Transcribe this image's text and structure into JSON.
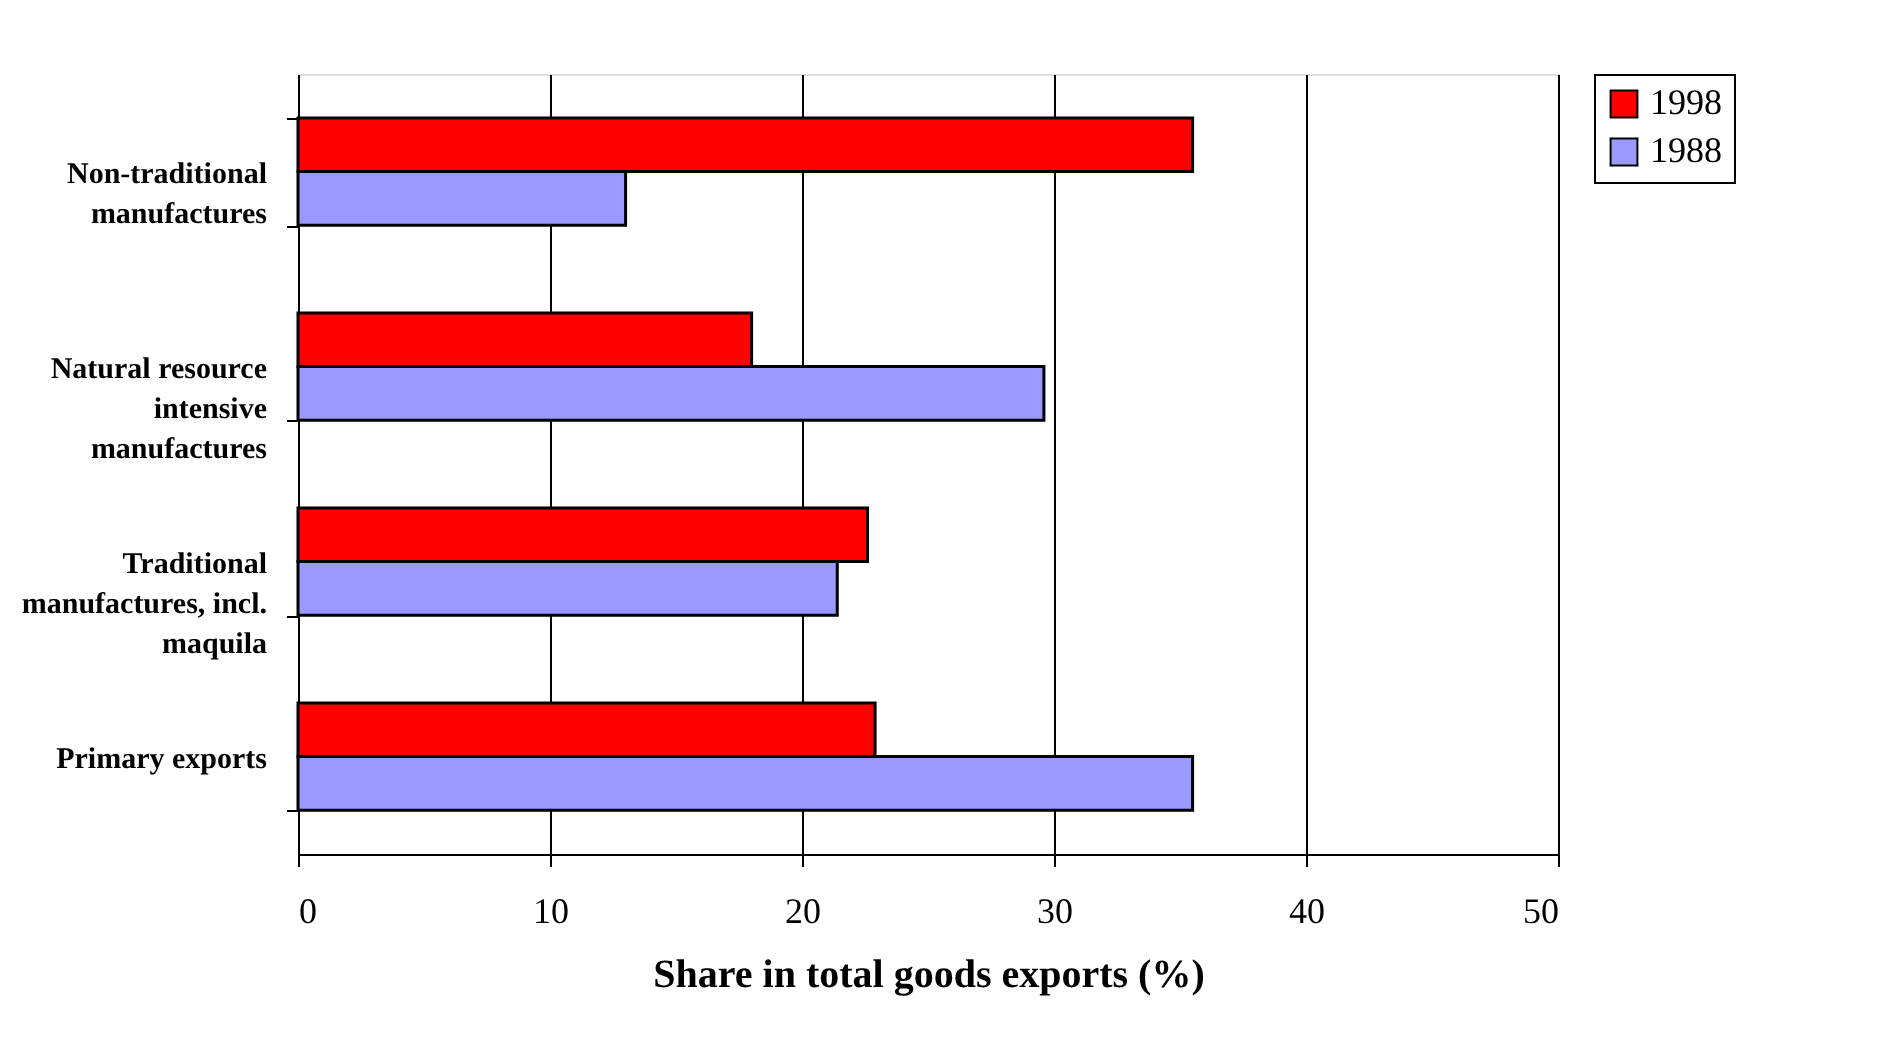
{
  "chart_data": {
    "type": "bar",
    "orientation": "horizontal",
    "xlabel": "Share in total goods exports (%)",
    "categories": [
      "Non-traditional manufactures",
      "Natural resource intensive manufactures",
      "Traditional manufactures, incl. maquila",
      "Primary exports"
    ],
    "series": [
      {
        "name": "1998",
        "color": "#ff0000",
        "values": [
          35.5,
          18.0,
          22.6,
          22.9
        ]
      },
      {
        "name": "1988",
        "color": "#9999ff",
        "values": [
          13.0,
          29.6,
          21.4,
          35.5
        ]
      }
    ],
    "xlim": [
      0,
      50
    ],
    "xticks": [
      0,
      10,
      20,
      30,
      40,
      50
    ],
    "grid": "x",
    "legend": "right"
  }
}
